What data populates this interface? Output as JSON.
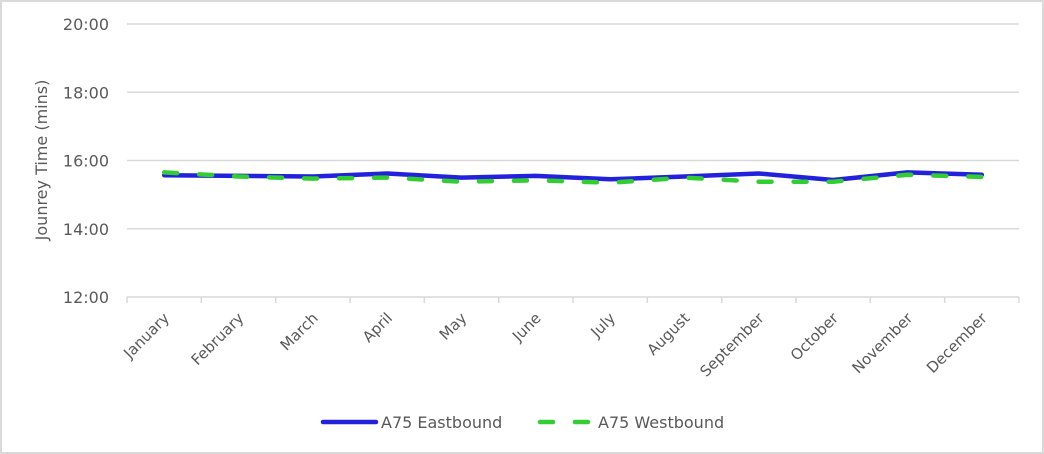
{
  "chart_data": {
    "type": "line",
    "title": "",
    "xlabel": "",
    "ylabel": "Jounrey Time (mins)",
    "ylim": [
      "12:00",
      "20:00"
    ],
    "ylim_minutes": [
      12,
      20
    ],
    "yticks": [
      "12:00",
      "14:00",
      "16:00",
      "18:00",
      "20:00"
    ],
    "grid": true,
    "legend_position": "bottom",
    "categories": [
      "January",
      "February",
      "March",
      "April",
      "May",
      "June",
      "July",
      "August",
      "September",
      "October",
      "November",
      "December"
    ],
    "series": [
      {
        "name": "A75 Eastbound",
        "color": "#2222dd",
        "style": "solid",
        "values": [
          "15:34",
          "15:33",
          "15:32",
          "15:37",
          "15:30",
          "15:33",
          "15:27",
          "15:32",
          "15:37",
          "15:26",
          "15:39",
          "15:35"
        ],
        "values_minutes": [
          15.57,
          15.55,
          15.53,
          15.62,
          15.5,
          15.55,
          15.45,
          15.53,
          15.62,
          15.43,
          15.65,
          15.58
        ]
      },
      {
        "name": "A75 Westbound",
        "color": "#33cc33",
        "style": "dashed",
        "values": [
          "15:39",
          "15:32",
          "15:28",
          "15:30",
          "15:23",
          "15:25",
          "15:21",
          "15:30",
          "15:23",
          "15:23",
          "15:35",
          "15:31"
        ],
        "values_minutes": [
          15.65,
          15.53,
          15.47,
          15.5,
          15.38,
          15.42,
          15.35,
          15.5,
          15.38,
          15.38,
          15.58,
          15.52
        ]
      }
    ]
  },
  "legend": {
    "eastbound_label": "A75 Eastbound",
    "westbound_label": "A75 Westbound"
  }
}
